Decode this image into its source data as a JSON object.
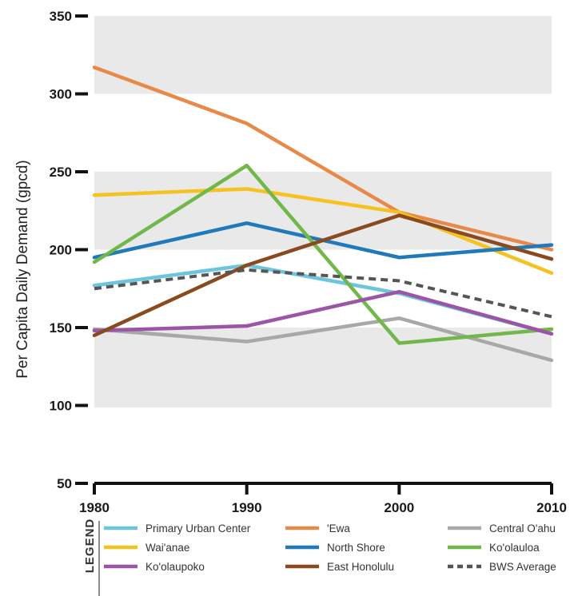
{
  "chart_data": {
    "type": "line",
    "title": "",
    "xlabel": "",
    "ylabel": "Per Capita Daily Demand (gpcd)",
    "x": [
      1980,
      1990,
      2000,
      2010
    ],
    "x_tick_labels": [
      "1980",
      "1990",
      "2000",
      "2010"
    ],
    "y_ticks": [
      50,
      100,
      150,
      200,
      250,
      300,
      350
    ],
    "y_tick_labels": [
      "50",
      "100",
      "150",
      "200",
      "250",
      "300",
      "350"
    ],
    "ylim": [
      50,
      350
    ],
    "grid": false,
    "background_bands": [
      [
        100,
        150
      ],
      [
        200,
        250
      ],
      [
        300,
        350
      ]
    ],
    "legend_placement": "bottom",
    "legend_title": "LEGEND",
    "series": [
      {
        "name": "Primary Urban Center",
        "color": "#6cc5dc",
        "dashed": false,
        "values": [
          177,
          190,
          172,
          146
        ]
      },
      {
        "name": "'Ewa",
        "color": "#e8894a",
        "dashed": false,
        "values": [
          317,
          281,
          224,
          200
        ]
      },
      {
        "name": "Central O'ahu",
        "color": "#a8a8a8",
        "dashed": false,
        "values": [
          149,
          141,
          156,
          129
        ]
      },
      {
        "name": "Wai'anae",
        "color": "#f5c21f",
        "dashed": false,
        "values": [
          235,
          239,
          224,
          185
        ]
      },
      {
        "name": "North Shore",
        "color": "#1f79ba",
        "dashed": false,
        "values": [
          195,
          217,
          195,
          203
        ]
      },
      {
        "name": "Ko'olauloa",
        "color": "#71b74a",
        "dashed": false,
        "values": [
          192,
          254,
          140,
          149
        ]
      },
      {
        "name": "Ko'olaupoko",
        "color": "#9b54a6",
        "dashed": false,
        "values": [
          148,
          151,
          173,
          146
        ]
      },
      {
        "name": "East Honolulu",
        "color": "#8a4a1f",
        "dashed": false,
        "values": [
          145,
          190,
          222,
          194
        ]
      },
      {
        "name": "BWS Average",
        "color": "#555555",
        "dashed": true,
        "values": [
          175,
          187,
          180,
          157
        ]
      }
    ]
  }
}
